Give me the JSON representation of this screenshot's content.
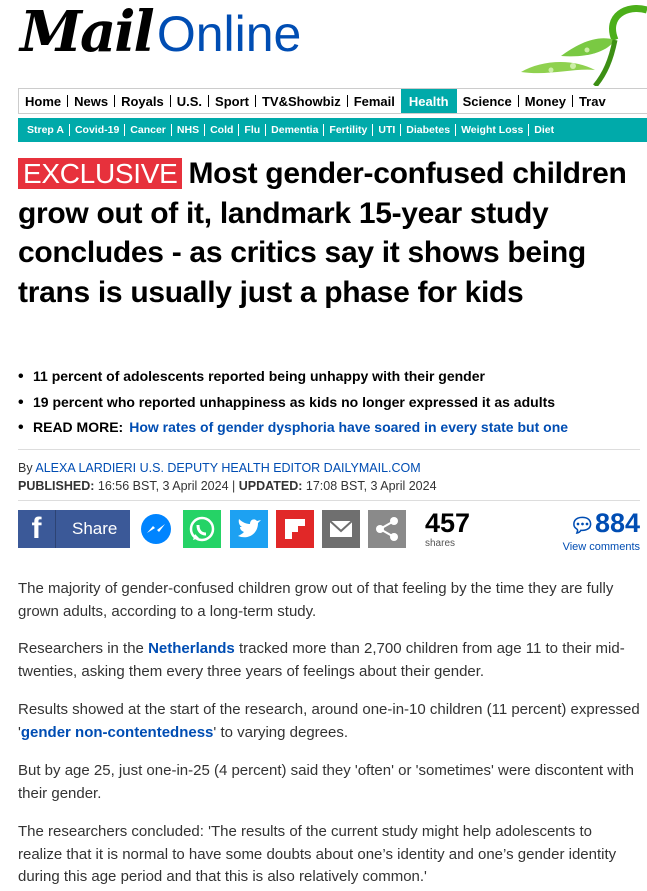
{
  "brand": {
    "mail": "Mail",
    "online": "Online"
  },
  "nav": {
    "items": [
      "Home",
      "News",
      "Royals",
      "U.S.",
      "Sport",
      "TV&Showbiz",
      "Femail",
      "Health",
      "Science",
      "Money",
      "Trav"
    ],
    "active": "Health"
  },
  "subnav": {
    "items": [
      "Strep A",
      "Covid-19",
      "Cancer",
      "NHS",
      "Cold",
      "Flu",
      "Dementia",
      "Fertility",
      "UTI",
      "Diabetes",
      "Weight Loss",
      "Diet"
    ]
  },
  "article": {
    "badge": "EXCLUSIVE",
    "headline": "Most gender-confused children grow out of it, landmark 15-year study concludes - as critics say it shows being trans is usually just a phase for kids",
    "bullets": [
      "11 percent of adolescents reported being unhappy with their gender",
      "19 percent who reported unhappiness as kids no longer expressed it as adults"
    ],
    "read_more_label": "READ MORE:",
    "read_more_link": "How rates of gender dysphoria have soared in every state but one",
    "byline_prefix": "By",
    "author": "ALEXA LARDIERI U.S. DEPUTY HEALTH EDITOR DAILYMAIL.COM",
    "published_label": "PUBLISHED:",
    "published": "16:56 BST, 3 April 2024",
    "updated_label": "UPDATED:",
    "updated": "17:08 BST, 3 April 2024"
  },
  "share": {
    "fb_label": "Share",
    "shares_count": "457",
    "shares_label": "shares",
    "comments_count": "884",
    "comments_label": "View comments",
    "icons": [
      "facebook-icon",
      "messenger-icon",
      "whatsapp-icon",
      "twitter-icon",
      "flipboard-icon",
      "email-icon",
      "share-icon"
    ]
  },
  "body": {
    "p1": "The majority of gender-confused children grow out of that feeling by the time they are fully grown adults, according to a long-term study.",
    "p2_a": "Researchers in the ",
    "p2_link": "Netherlands",
    "p2_b": " tracked more than 2,700 children from age 11 to their mid-twenties, asking them every three years of feelings about their gender.",
    "p3_a": "Results showed at the start of the research, around one-in-10 children (11 percent) expressed '",
    "p3_link": "gender non-contentedness",
    "p3_b": "' to varying degrees.",
    "p4": "But by age 25, just one-in-25 (4 percent) said they 'often' or 'sometimes' were discontent with their gender.",
    "p5": "The researchers concluded: 'The results of the current study might help adolescents to realize that it is normal to have some doubts about one’s identity and one’s gender identity during this age period and that this is also relatively common.'"
  },
  "colors": {
    "accent_teal": "#00aaaa",
    "link_blue": "#004db3",
    "exclusive_red": "#e7313c",
    "facebook": "#3b5998",
    "messenger": "#0084ff",
    "whatsapp": "#25d366",
    "twitter": "#1da1f2",
    "flipboard": "#e12828"
  }
}
